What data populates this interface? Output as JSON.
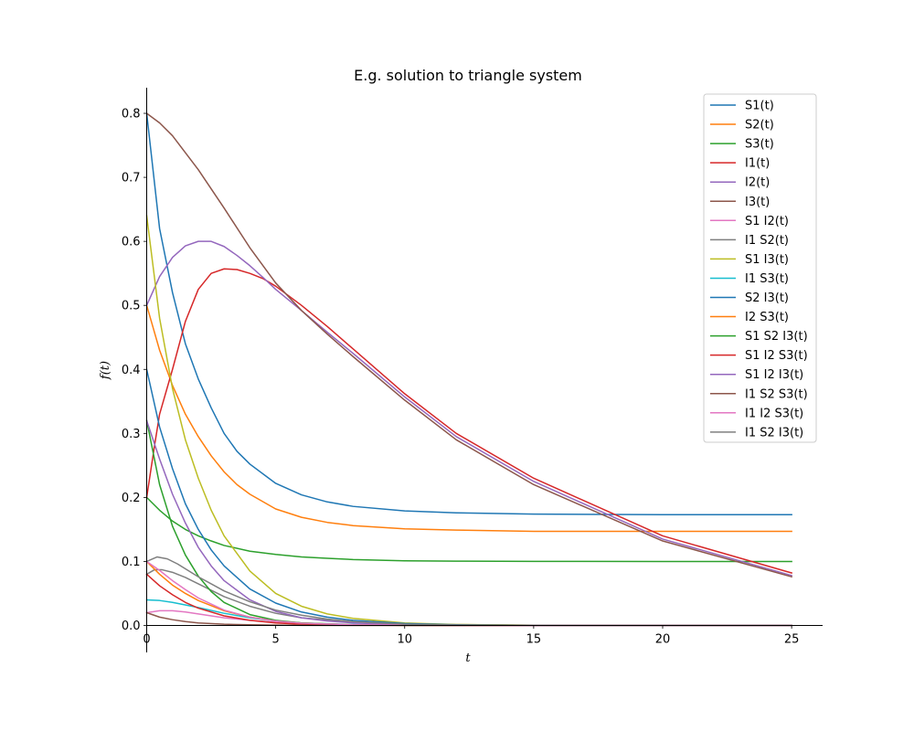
{
  "chart_data": {
    "type": "line",
    "title": "E.g. solution to triangle system",
    "xlabel": "t",
    "ylabel": "f(t)",
    "xlim": [
      0,
      26.2
    ],
    "ylim": [
      0,
      0.84
    ],
    "xticks": [
      0,
      5,
      10,
      15,
      20,
      25
    ],
    "yticks": [
      0.0,
      0.1,
      0.2,
      0.3,
      0.4,
      0.5,
      0.6,
      0.7,
      0.8
    ],
    "grid": false,
    "legend_position": "top-right",
    "series": [
      {
        "name": "S1(t)",
        "color": "#1f77b4",
        "x": [
          0,
          0.5,
          1,
          1.5,
          2,
          2.5,
          3,
          3.5,
          4,
          5,
          6,
          7,
          8,
          10,
          12,
          15,
          20,
          25
        ],
        "y": [
          0.8,
          0.62,
          0.52,
          0.44,
          0.385,
          0.34,
          0.3,
          0.272,
          0.252,
          0.222,
          0.204,
          0.193,
          0.186,
          0.179,
          0.176,
          0.174,
          0.173,
          0.173
        ]
      },
      {
        "name": "S2(t)",
        "color": "#ff7f0e",
        "x": [
          0,
          0.5,
          1,
          1.5,
          2,
          2.5,
          3,
          3.5,
          4,
          5,
          6,
          7,
          8,
          10,
          12,
          15,
          20,
          25
        ],
        "y": [
          0.5,
          0.43,
          0.375,
          0.33,
          0.295,
          0.265,
          0.24,
          0.22,
          0.205,
          0.182,
          0.169,
          0.161,
          0.156,
          0.151,
          0.149,
          0.147,
          0.147,
          0.147
        ]
      },
      {
        "name": "S3(t)",
        "color": "#2ca02c",
        "x": [
          0,
          0.5,
          1,
          1.5,
          2,
          2.5,
          3,
          4,
          5,
          6,
          7,
          8,
          10,
          12,
          15,
          20,
          25
        ],
        "y": [
          0.2,
          0.18,
          0.163,
          0.15,
          0.14,
          0.132,
          0.125,
          0.116,
          0.111,
          0.107,
          0.105,
          0.103,
          0.101,
          0.1005,
          0.1001,
          0.1,
          0.1
        ]
      },
      {
        "name": "I1(t)",
        "color": "#d62728",
        "x": [
          0,
          0.3,
          0.5,
          1,
          1.5,
          2,
          2.5,
          3,
          3.5,
          4,
          4.5,
          5,
          6,
          7,
          8,
          10,
          12,
          15,
          20,
          25
        ],
        "y": [
          0.2,
          0.28,
          0.33,
          0.4,
          0.475,
          0.525,
          0.55,
          0.557,
          0.556,
          0.55,
          0.542,
          0.53,
          0.5,
          0.467,
          0.432,
          0.362,
          0.3,
          0.23,
          0.14,
          0.082
        ]
      },
      {
        "name": "I2(t)",
        "color": "#9467bd",
        "x": [
          0,
          0.5,
          1,
          1.5,
          2,
          2.5,
          3,
          3.5,
          4,
          4.5,
          5,
          6,
          7,
          8,
          10,
          12,
          15,
          20,
          25
        ],
        "y": [
          0.5,
          0.545,
          0.575,
          0.593,
          0.6,
          0.6,
          0.592,
          0.578,
          0.562,
          0.544,
          0.525,
          0.492,
          0.458,
          0.425,
          0.357,
          0.295,
          0.225,
          0.135,
          0.078
        ]
      },
      {
        "name": "I3(t)",
        "color": "#8c564b",
        "x": [
          0,
          0.5,
          1,
          2,
          3,
          4,
          5,
          6,
          7,
          8,
          10,
          12,
          15,
          20,
          25
        ],
        "y": [
          0.8,
          0.785,
          0.765,
          0.712,
          0.652,
          0.59,
          0.535,
          0.492,
          0.455,
          0.42,
          0.352,
          0.29,
          0.22,
          0.132,
          0.076
        ]
      },
      {
        "name": "S1 I2(t)",
        "color": "#e377c2",
        "x": [
          0,
          0.5,
          1,
          1.5,
          2,
          3,
          4,
          5,
          6,
          8,
          10,
          15,
          20,
          25
        ],
        "y": [
          0.02,
          0.023,
          0.023,
          0.021,
          0.018,
          0.012,
          0.008,
          0.005,
          0.003,
          0.0015,
          0.0008,
          0.0002,
          0.0,
          0.0
        ]
      },
      {
        "name": "I1 S2(t)",
        "color": "#7f7f7f",
        "x": [
          0,
          0.3,
          0.6,
          1,
          1.5,
          2,
          3,
          4,
          5,
          6,
          8,
          10,
          15,
          20,
          25
        ],
        "y": [
          0.08,
          0.087,
          0.087,
          0.083,
          0.075,
          0.065,
          0.045,
          0.03,
          0.019,
          0.012,
          0.005,
          0.002,
          0.0003,
          0.0,
          0.0
        ]
      },
      {
        "name": "S1 I3(t)",
        "color": "#bcbd22",
        "x": [
          0,
          0.5,
          1,
          1.5,
          2,
          2.5,
          3,
          4,
          5,
          6,
          7,
          8,
          10,
          12,
          15,
          20,
          25
        ],
        "y": [
          0.64,
          0.48,
          0.37,
          0.29,
          0.23,
          0.18,
          0.14,
          0.085,
          0.05,
          0.03,
          0.018,
          0.011,
          0.004,
          0.0015,
          0.0003,
          0.0,
          0.0
        ]
      },
      {
        "name": "I1 S3(t)",
        "color": "#17becf",
        "x": [
          0,
          0.5,
          1,
          2,
          3,
          4,
          5,
          6,
          8,
          10,
          15,
          20,
          25
        ],
        "y": [
          0.04,
          0.039,
          0.036,
          0.028,
          0.019,
          0.012,
          0.007,
          0.004,
          0.0015,
          0.0005,
          0.0,
          0.0,
          0.0
        ]
      },
      {
        "name": "S2 I3(t)",
        "color": "#1f77b4",
        "x": [
          0,
          0.5,
          1,
          1.5,
          2,
          2.5,
          3,
          4,
          5,
          6,
          7,
          8,
          10,
          12,
          15,
          20,
          25
        ],
        "y": [
          0.4,
          0.31,
          0.245,
          0.19,
          0.15,
          0.118,
          0.093,
          0.057,
          0.035,
          0.021,
          0.013,
          0.008,
          0.003,
          0.001,
          0.0002,
          0.0,
          0.0
        ]
      },
      {
        "name": "I2 S3(t)",
        "color": "#ff7f0e",
        "x": [
          0,
          0.5,
          1,
          1.5,
          2,
          3,
          4,
          5,
          6,
          8,
          10,
          15,
          20,
          25
        ],
        "y": [
          0.1,
          0.08,
          0.063,
          0.05,
          0.039,
          0.023,
          0.013,
          0.007,
          0.004,
          0.001,
          0.0004,
          0.0,
          0.0,
          0.0
        ]
      },
      {
        "name": "S1 S2 I3(t)",
        "color": "#2ca02c",
        "x": [
          0,
          0.5,
          1,
          1.5,
          2,
          2.5,
          3,
          4,
          5,
          6,
          8,
          10,
          15,
          20,
          25
        ],
        "y": [
          0.32,
          0.22,
          0.155,
          0.11,
          0.077,
          0.053,
          0.036,
          0.017,
          0.008,
          0.004,
          0.001,
          0.0002,
          0.0,
          0.0,
          0.0
        ]
      },
      {
        "name": "S1 I2 S3(t)",
        "color": "#d62728",
        "x": [
          0,
          0.5,
          1,
          1.5,
          2,
          3,
          4,
          5,
          6,
          8,
          10,
          15,
          20,
          25
        ],
        "y": [
          0.08,
          0.062,
          0.048,
          0.036,
          0.027,
          0.015,
          0.008,
          0.004,
          0.002,
          0.0005,
          0.0001,
          0.0,
          0.0,
          0.0
        ]
      },
      {
        "name": "S1 I2 I3(t)",
        "color": "#9467bd",
        "x": [
          0,
          0.5,
          1,
          1.5,
          2,
          2.5,
          3,
          4,
          5,
          6,
          7,
          8,
          10,
          12,
          15,
          20,
          25
        ],
        "y": [
          0.32,
          0.26,
          0.205,
          0.16,
          0.122,
          0.093,
          0.07,
          0.04,
          0.022,
          0.012,
          0.007,
          0.004,
          0.001,
          0.0003,
          0.0,
          0.0,
          0.0
        ]
      },
      {
        "name": "I1 S2 S3(t)",
        "color": "#8c564b",
        "x": [
          0,
          0.5,
          1,
          1.5,
          2,
          3,
          4,
          5,
          6,
          8,
          10,
          15,
          20,
          25
        ],
        "y": [
          0.02,
          0.013,
          0.009,
          0.006,
          0.004,
          0.002,
          0.001,
          0.0005,
          0.0002,
          0.0,
          0.0,
          0.0,
          0.0,
          0.0
        ]
      },
      {
        "name": "I1 I2 S3(t)",
        "color": "#e377c2",
        "x": [
          0,
          0.5,
          1,
          1.5,
          2,
          3,
          4,
          5,
          6,
          8,
          10,
          15,
          20,
          25
        ],
        "y": [
          0.1,
          0.086,
          0.07,
          0.056,
          0.043,
          0.024,
          0.013,
          0.007,
          0.0035,
          0.001,
          0.0003,
          0.0,
          0.0,
          0.0
        ]
      },
      {
        "name": "I1 S2 I3(t)",
        "color": "#7f7f7f",
        "x": [
          0,
          0.4,
          0.8,
          1.2,
          1.6,
          2,
          3,
          4,
          5,
          6,
          7,
          8,
          10,
          12,
          15,
          20,
          25
        ],
        "y": [
          0.1,
          0.107,
          0.104,
          0.096,
          0.086,
          0.076,
          0.054,
          0.037,
          0.024,
          0.016,
          0.01,
          0.006,
          0.002,
          0.0007,
          0.0001,
          0.0,
          0.0
        ]
      }
    ]
  }
}
